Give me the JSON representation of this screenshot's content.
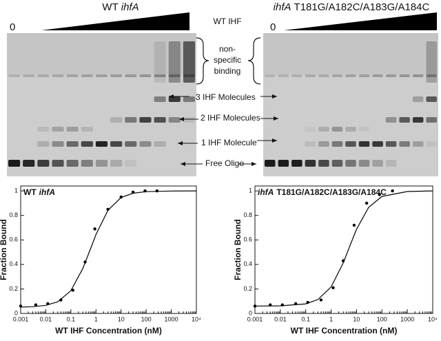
{
  "gel": {
    "titles": [
      [
        {
          "text": "WT",
          "italic": false
        },
        {
          "text": "ihfA",
          "italic": true
        }
      ],
      [
        {
          "text": "ihfA",
          "italic": true
        },
        {
          "text": "T181G/A182C/A183G/A184C",
          "italic": false
        }
      ]
    ],
    "zero": "0",
    "concentration_label": "WT IHF",
    "nonspecific": [
      "non-",
      "specific",
      "binding"
    ],
    "bands": [
      "3 IHF Molecules",
      "2 IHF Molecules",
      "1 IHF Molecule",
      "Free Oligo"
    ]
  },
  "chart_data": [
    {
      "type": "scatter",
      "label_parts": [
        {
          "text": "WT",
          "italic": false
        },
        {
          "text": "ihfA",
          "italic": true
        }
      ],
      "x_label": "WT IHF Concentration (nM)",
      "y_label": "Fraction Bound",
      "log_x": true,
      "xlim": [
        0.001,
        10000
      ],
      "xticks": [
        0.001,
        0.01,
        0.1,
        1,
        10,
        100,
        1000,
        {
          "value": 10000,
          "label": "10⁴"
        }
      ],
      "ylim": [
        0,
        1.04
      ],
      "yticks": [
        0,
        0.2,
        0.4,
        0.6,
        0.8,
        1
      ],
      "series": [
        {
          "style": "points",
          "color": "#000000",
          "x": [
            0.001,
            0.004,
            0.012,
            0.04,
            0.12,
            0.37,
            0.9,
            3,
            10,
            30,
            90,
            270
          ],
          "values": [
            0.06,
            0.07,
            0.08,
            0.11,
            0.19,
            0.42,
            0.69,
            0.85,
            0.95,
            0.99,
            1.0,
            1.0
          ]
        },
        {
          "style": "line",
          "color": "#000000",
          "x": [
            0.001,
            0.003,
            0.01,
            0.03,
            0.1,
            0.3,
            0.6,
            1,
            3,
            10,
            30,
            100,
            1000,
            10000
          ],
          "values": [
            0.052,
            0.055,
            0.066,
            0.095,
            0.186,
            0.367,
            0.525,
            0.644,
            0.842,
            0.946,
            0.981,
            0.994,
            0.999,
            1.0
          ]
        }
      ]
    },
    {
      "type": "scatter",
      "label_parts": [
        {
          "text": "ihfA",
          "italic": true
        },
        {
          "text": "T181G/A182C/A183G/A184C",
          "italic": false
        }
      ],
      "x_label": "WT IHF Concentration (nM)",
      "y_label": "Fraction Bound",
      "log_x": true,
      "xlim": [
        0.001,
        10000
      ],
      "xticks": [
        0.001,
        0.01,
        0.1,
        1,
        10,
        100,
        1000,
        {
          "value": 10000,
          "label": "10⁴"
        }
      ],
      "ylim": [
        0,
        1.04
      ],
      "yticks": [
        0,
        0.2,
        0.4,
        0.6,
        0.8,
        1
      ],
      "series": [
        {
          "style": "points",
          "color": "#000000",
          "x": [
            0.001,
            0.004,
            0.012,
            0.04,
            0.12,
            0.4,
            1.2,
            3,
            8,
            25,
            80,
            260
          ],
          "values": [
            0.06,
            0.07,
            0.07,
            0.08,
            0.09,
            0.11,
            0.21,
            0.43,
            0.72,
            0.9,
            0.97,
            1.0
          ]
        },
        {
          "style": "line",
          "color": "#000000",
          "x": [
            0.001,
            0.01,
            0.1,
            0.3,
            1,
            3,
            5,
            10,
            30,
            100,
            1000,
            10000
          ],
          "values": [
            0.06,
            0.062,
            0.078,
            0.113,
            0.217,
            0.413,
            0.53,
            0.687,
            0.866,
            0.955,
            0.995,
            1.0
          ]
        }
      ]
    }
  ]
}
